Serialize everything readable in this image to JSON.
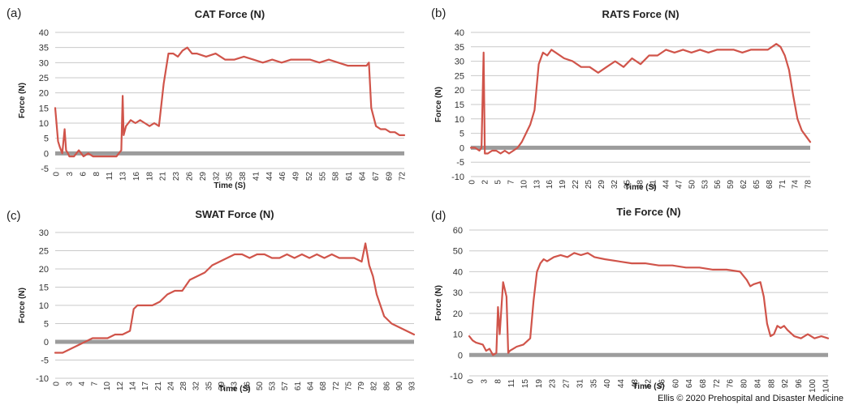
{
  "credit": "Ellis © 2020 Prehospital and Disaster Medicine",
  "colors": {
    "series": "#d0544a",
    "grid": "#c9c9c9",
    "zero_line": "#9c9c9c"
  },
  "chart_data": [
    {
      "panel_label": "(a)",
      "type": "line",
      "title": "CAT Force (N)",
      "xlabel": "Time (S)",
      "ylabel": "Force (N)",
      "ylim": [
        -5,
        40
      ],
      "y_ticks": [
        -5,
        0,
        5,
        10,
        15,
        20,
        25,
        30,
        35,
        40
      ],
      "x_ticks": [
        "0",
        "3",
        "6",
        "8",
        "11",
        "13",
        "16",
        "18",
        "21",
        "23",
        "26",
        "29",
        "32",
        "35",
        "38",
        "41",
        "44",
        "46",
        "49",
        "52",
        "55",
        "58",
        "61",
        "64",
        "67",
        "69",
        "72"
      ],
      "xlim": [
        0,
        74
      ],
      "series": [
        {
          "name": "CAT Force",
          "x": [
            0,
            0.6,
            1,
            1.5,
            2,
            2.3,
            2.7,
            3,
            4,
            5,
            6,
            7,
            8,
            9,
            10,
            11,
            12,
            12.5,
            13,
            13.5,
            14,
            14.3,
            14.5,
            15,
            15.5,
            16,
            17,
            18,
            19,
            20,
            21,
            22,
            23,
            24,
            25,
            26,
            27,
            28,
            29,
            30,
            32,
            34,
            36,
            38,
            40,
            42,
            44,
            46,
            48,
            50,
            52,
            54,
            56,
            58,
            60,
            62,
            64,
            66,
            66.5,
            67,
            68,
            69,
            70,
            71,
            72,
            73,
            74
          ],
          "y": [
            15,
            4,
            2,
            0,
            8,
            1,
            0,
            -1,
            -1,
            1,
            -1,
            0,
            -1,
            -1,
            -1,
            -1,
            -1,
            -1,
            -1,
            0,
            1,
            19,
            6,
            9,
            10,
            11,
            10,
            11,
            10,
            9,
            10,
            9,
            23,
            33,
            33,
            32,
            34,
            35,
            33,
            33,
            32,
            33,
            31,
            31,
            32,
            31,
            30,
            31,
            30,
            31,
            31,
            31,
            30,
            31,
            30,
            29,
            29,
            29,
            30,
            15,
            9,
            8,
            8,
            7,
            7,
            6,
            6
          ]
        }
      ]
    },
    {
      "panel_label": "(b)",
      "type": "line",
      "title": "RATS Force (N)",
      "xlabel": "Time (S)",
      "ylabel": "Force (N)",
      "ylim": [
        -10,
        40
      ],
      "y_ticks": [
        -10,
        -5,
        0,
        5,
        10,
        15,
        20,
        25,
        30,
        35,
        40
      ],
      "x_ticks": [
        "0",
        "2",
        "5",
        "7",
        "10",
        "13",
        "16",
        "19",
        "22",
        "25",
        "29",
        "32",
        "35",
        "38",
        "41",
        "44",
        "47",
        "50",
        "53",
        "56",
        "59",
        "62",
        "65",
        "68",
        "71",
        "74",
        "78"
      ],
      "xlim": [
        0,
        80
      ],
      "series": [
        {
          "name": "RATS Force",
          "x": [
            0,
            1,
            2,
            2.5,
            3,
            3.3,
            3.6,
            4,
            5,
            6,
            7,
            8,
            9,
            10,
            11,
            12,
            13,
            14,
            15,
            16,
            17,
            18,
            19,
            20,
            22,
            24,
            26,
            28,
            30,
            32,
            34,
            36,
            38,
            40,
            42,
            44,
            46,
            48,
            50,
            52,
            54,
            56,
            58,
            60,
            62,
            64,
            66,
            68,
            70,
            72,
            73,
            74,
            75,
            76,
            77,
            78,
            79,
            80
          ],
          "y": [
            0,
            0,
            -1,
            0,
            33,
            -2,
            -2,
            -2,
            -1,
            -1,
            -2,
            -1,
            -2,
            -1,
            0,
            2,
            5,
            8,
            13,
            29,
            33,
            32,
            34,
            33,
            31,
            30,
            28,
            28,
            26,
            28,
            30,
            28,
            31,
            29,
            32,
            32,
            34,
            33,
            34,
            33,
            34,
            33,
            34,
            34,
            34,
            33,
            34,
            34,
            34,
            36,
            35,
            32,
            27,
            18,
            10,
            6,
            4,
            2
          ]
        }
      ]
    },
    {
      "panel_label": "(c)",
      "type": "line",
      "title": "SWAT Force (N)",
      "xlabel": "Time (S)",
      "ylabel": "Force (N)",
      "ylim": [
        -10,
        30
      ],
      "y_ticks": [
        -10,
        -5,
        0,
        5,
        10,
        15,
        20,
        25,
        30
      ],
      "x_ticks": [
        "0",
        "3",
        "4",
        "7",
        "10",
        "12",
        "14",
        "17",
        "21",
        "24",
        "28",
        "32",
        "35",
        "39",
        "43",
        "46",
        "50",
        "53",
        "57",
        "61",
        "64",
        "68",
        "72",
        "75",
        "79",
        "82",
        "86",
        "90",
        "93"
      ],
      "xlim": [
        0,
        96
      ],
      "series": [
        {
          "name": "SWAT Force",
          "x": [
            0,
            2,
            4,
            6,
            8,
            10,
            12,
            14,
            16,
            18,
            20,
            21,
            22,
            24,
            26,
            28,
            30,
            32,
            34,
            36,
            38,
            40,
            42,
            44,
            46,
            48,
            50,
            52,
            54,
            56,
            58,
            60,
            62,
            64,
            66,
            68,
            70,
            72,
            74,
            76,
            78,
            80,
            82,
            83,
            84,
            85,
            86,
            88,
            90,
            92,
            94,
            96
          ],
          "y": [
            -3,
            -3,
            -2,
            -1,
            0,
            1,
            1,
            1,
            2,
            2,
            3,
            9,
            10,
            10,
            10,
            11,
            13,
            14,
            14,
            17,
            18,
            19,
            21,
            22,
            23,
            24,
            24,
            23,
            24,
            24,
            23,
            23,
            24,
            23,
            24,
            23,
            24,
            23,
            24,
            23,
            23,
            23,
            22,
            27,
            21,
            18,
            13,
            7,
            5,
            4,
            3,
            2
          ]
        }
      ]
    },
    {
      "panel_label": "(d)",
      "type": "line",
      "title": "Tie Force (N)",
      "xlabel": "Time (S)",
      "ylabel": "Force (N)",
      "ylim": [
        -10,
        60
      ],
      "y_ticks": [
        -10,
        0,
        10,
        20,
        30,
        40,
        50,
        60
      ],
      "x_ticks": [
        "0",
        "3",
        "8",
        "11",
        "15",
        "19",
        "23",
        "27",
        "31",
        "35",
        "40",
        "44",
        "48",
        "52",
        "56",
        "60",
        "64",
        "68",
        "72",
        "76",
        "80",
        "84",
        "88",
        "92",
        "96",
        "100",
        "104"
      ],
      "xlim": [
        0,
        106
      ],
      "series": [
        {
          "name": "Tie Force",
          "x": [
            0,
            1,
            2,
            4,
            5,
            6,
            7,
            8,
            8.5,
            9,
            10,
            11,
            11.5,
            12,
            13,
            14,
            16,
            18,
            19,
            20,
            21,
            22,
            23,
            25,
            27,
            29,
            31,
            33,
            35,
            37,
            40,
            44,
            48,
            52,
            56,
            60,
            64,
            68,
            72,
            76,
            80,
            82,
            83,
            84,
            86,
            87,
            88,
            89,
            90,
            91,
            92,
            93,
            94,
            96,
            98,
            100,
            102,
            104,
            106
          ],
          "y": [
            9,
            7,
            6,
            5,
            2,
            3,
            0,
            1,
            23,
            10,
            35,
            28,
            1,
            2,
            3,
            4,
            5,
            8,
            26,
            40,
            44,
            46,
            45,
            47,
            48,
            47,
            49,
            48,
            49,
            47,
            46,
            45,
            44,
            44,
            43,
            43,
            42,
            42,
            41,
            41,
            40,
            36,
            33,
            34,
            35,
            28,
            15,
            9,
            10,
            14,
            13,
            14,
            12,
            9,
            8,
            10,
            8,
            9,
            8
          ]
        }
      ]
    }
  ]
}
